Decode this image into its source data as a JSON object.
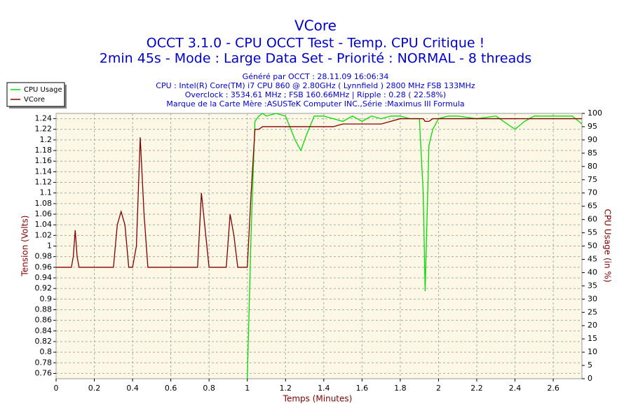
{
  "chart_data": {
    "type": "line",
    "title": "VCore",
    "subtitles": [
      "OCCT 3.1.0 - CPU OCCT Test - Temp. CPU Critique !",
      "2min 45s - Mode : Large Data Set - Priorité : NORMAL - 8 threads"
    ],
    "info": [
      "Généré par OCCT : 28.11.09 16:06:34",
      "CPU : Intel(R) Core(TM) i7 CPU 860 @ 2.80GHz ( Lynnfield ) 2800 MHz FSB 133MHz",
      "Overclock : 3534.61 MHz ; FSB 160.66MHz | Ripple : 0.28 ( 22.58%)",
      "Marque de la Carte Mère :ASUSTeK Computer INC.,Série :Maximus III Formula"
    ],
    "x_label": "Temps (Minutes)",
    "y_label": "Tension (Volts)",
    "y2_label": "CPU Usage (in %)",
    "x": [
      0,
      0.08,
      0.09,
      0.1,
      0.11,
      0.12,
      0.3,
      0.32,
      0.34,
      0.36,
      0.38,
      0.4,
      0.42,
      0.44,
      0.46,
      0.48,
      0.74,
      0.76,
      0.78,
      0.8,
      0.89,
      0.91,
      0.93,
      0.95,
      0.98,
      1.0,
      1.02,
      1.04,
      1.06,
      1.08,
      1.1,
      1.15,
      1.2,
      1.25,
      1.28,
      1.31,
      1.35,
      1.4,
      1.45,
      1.5,
      1.55,
      1.6,
      1.65,
      1.7,
      1.75,
      1.8,
      1.85,
      1.9,
      1.92,
      1.93,
      1.95,
      1.97,
      2.0,
      2.05,
      2.1,
      2.2,
      2.3,
      2.4,
      2.45,
      2.5,
      2.6,
      2.7,
      2.75
    ],
    "series": [
      {
        "name": "CPU Usage",
        "color": "#00dd00",
        "axis": "y2",
        "values": [
          null,
          null,
          null,
          null,
          null,
          null,
          null,
          null,
          null,
          null,
          null,
          null,
          null,
          null,
          null,
          null,
          null,
          null,
          null,
          null,
          null,
          null,
          null,
          null,
          null,
          0,
          55,
          97,
          99,
          100,
          99,
          100,
          99,
          90,
          86,
          92,
          99,
          99,
          98,
          97,
          99,
          97,
          99,
          98,
          99,
          99,
          98,
          98,
          70,
          33,
          88,
          94,
          98,
          99,
          99,
          98,
          99,
          94,
          97,
          99,
          99,
          99,
          96
        ]
      },
      {
        "name": "VCore",
        "color": "#800000",
        "values": [
          0.96,
          0.96,
          0.98,
          1.03,
          0.98,
          0.96,
          0.96,
          1.04,
          1.065,
          1.04,
          0.96,
          0.96,
          1.0,
          1.205,
          1.06,
          0.96,
          0.96,
          1.1,
          1.03,
          0.96,
          0.96,
          1.06,
          1.02,
          0.96,
          0.96,
          0.96,
          1.1,
          1.22,
          1.22,
          1.225,
          1.225,
          1.225,
          1.225,
          1.225,
          1.225,
          1.225,
          1.225,
          1.225,
          1.225,
          1.23,
          1.23,
          1.23,
          1.23,
          1.23,
          1.235,
          1.24,
          1.24,
          1.24,
          1.24,
          1.235,
          1.235,
          1.24,
          1.24,
          1.24,
          1.24,
          1.24,
          1.24,
          1.24,
          1.24,
          1.24,
          1.24,
          1.24,
          1.24
        ]
      }
    ],
    "xlim": [
      0,
      2.75
    ],
    "xticks": [
      0,
      0.2,
      0.4,
      0.6,
      0.8,
      1,
      1.2,
      1.4,
      1.6,
      1.8,
      2,
      2.2,
      2.4,
      2.6
    ],
    "ylim": [
      0.75,
      1.25
    ],
    "yticks": [
      0.76,
      0.78,
      0.8,
      0.82,
      0.84,
      0.86,
      0.88,
      0.9,
      0.92,
      0.94,
      0.96,
      0.98,
      1,
      1.02,
      1.04,
      1.06,
      1.08,
      1.1,
      1.12,
      1.14,
      1.16,
      1.18,
      1.2,
      1.22,
      1.24
    ],
    "y2lim": [
      0,
      100
    ],
    "y2ticks": [
      0,
      5,
      10,
      15,
      20,
      25,
      30,
      35,
      40,
      45,
      50,
      55,
      60,
      65,
      70,
      75,
      80,
      85,
      90,
      95,
      100
    ],
    "grid": true,
    "legend": "left"
  }
}
